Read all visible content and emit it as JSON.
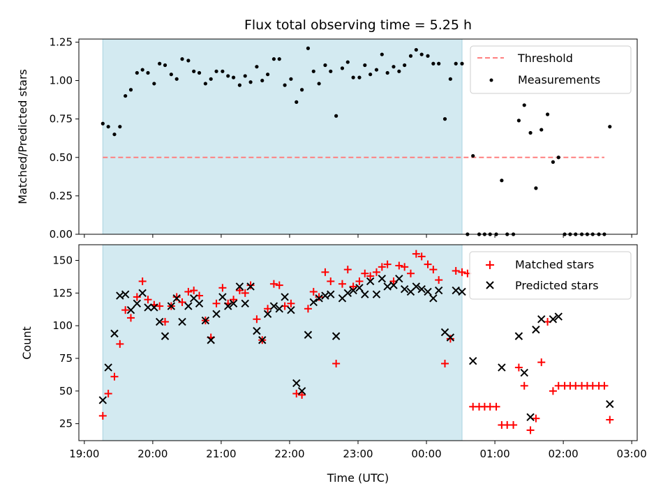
{
  "chart_data": {
    "title": "Flux total observing time = 5.25 h",
    "xlabel": "Time (UTC)",
    "x_ticks": [
      "19:00",
      "20:00",
      "21:00",
      "22:00",
      "23:00",
      "00:00",
      "01:00",
      "02:00",
      "03:00"
    ],
    "x_range_hours": [
      18.92,
      27.08
    ],
    "highlight_span_hours": [
      19.27,
      24.52
    ],
    "colors": {
      "span": "#d3eaf1",
      "threshold": "#ff7f7f",
      "matched": "#ff0000",
      "predicted": "#000000",
      "measurement": "#000000"
    },
    "panels": [
      {
        "type": "scatter",
        "ylabel": "Matched/Predicted stars",
        "ylim": [
          0,
          1.27
        ],
        "yticks": [
          "0.00",
          "0.25",
          "0.50",
          "0.75",
          "1.00",
          "1.25"
        ],
        "threshold": {
          "name": "Threshold",
          "value": 0.5,
          "x_range_hours": [
            19.27,
            26.6
          ]
        },
        "legend": [
          "Threshold",
          "Measurements"
        ],
        "series": [
          {
            "name": "Measurements",
            "x": [
              19.27,
              19.35,
              19.44,
              19.52,
              19.6,
              19.68,
              19.77,
              19.85,
              19.93,
              20.02,
              20.1,
              20.18,
              20.27,
              20.35,
              20.43,
              20.52,
              20.6,
              20.68,
              20.77,
              20.85,
              20.93,
              21.02,
              21.1,
              21.18,
              21.27,
              21.35,
              21.43,
              21.52,
              21.6,
              21.68,
              21.77,
              21.85,
              21.93,
              22.02,
              22.1,
              22.18,
              22.27,
              22.35,
              22.43,
              22.52,
              22.6,
              22.68,
              22.77,
              22.85,
              22.93,
              23.02,
              23.1,
              23.18,
              23.27,
              23.35,
              23.43,
              23.52,
              23.6,
              23.68,
              23.77,
              23.85,
              23.93,
              24.02,
              24.1,
              24.18,
              24.27,
              24.35,
              24.43,
              24.52,
              24.6,
              24.68,
              24.77,
              24.85,
              24.93,
              25.02,
              25.1,
              25.18,
              25.27,
              25.35,
              25.43,
              25.52,
              25.6,
              25.68,
              25.77,
              25.85,
              25.93,
              26.02,
              26.1,
              26.18,
              26.27,
              26.35,
              26.43,
              26.52,
              26.6,
              26.68
            ],
            "y": [
              0.72,
              0.7,
              0.65,
              0.7,
              0.9,
              0.94,
              1.05,
              1.07,
              1.05,
              0.98,
              1.11,
              1.1,
              1.04,
              1.01,
              1.14,
              1.13,
              1.06,
              1.05,
              0.98,
              1.01,
              1.06,
              1.06,
              1.03,
              1.02,
              0.97,
              1.03,
              0.99,
              1.09,
              1.0,
              1.04,
              1.14,
              1.14,
              0.97,
              1.01,
              0.86,
              0.94,
              1.21,
              1.06,
              0.98,
              1.1,
              1.06,
              0.77,
              1.08,
              1.12,
              1.02,
              1.02,
              1.1,
              1.04,
              1.07,
              1.17,
              1.05,
              1.09,
              1.06,
              1.1,
              1.16,
              1.2,
              1.17,
              1.16,
              1.11,
              1.11,
              0.75,
              1.01,
              1.11,
              1.11,
              0.0,
              0.51,
              0.0,
              0.0,
              0.0,
              0.0,
              0.35,
              0.0,
              0.0,
              0.74,
              0.84,
              0.66,
              0.3,
              0.68,
              0.78,
              0.47,
              0.5,
              0.0,
              0.0,
              0.0,
              0.0,
              0.0,
              0.0,
              0.0,
              0.0,
              0.7
            ]
          }
        ]
      },
      {
        "type": "scatter",
        "ylabel": "Count",
        "ylim": [
          12,
          162
        ],
        "yticks": [
          "25",
          "50",
          "75",
          "100",
          "125",
          "150"
        ],
        "legend": [
          "Matched stars",
          "Predicted stars"
        ],
        "series": [
          {
            "name": "Matched stars",
            "marker": "plus",
            "x": [
              19.27,
              19.35,
              19.44,
              19.52,
              19.6,
              19.68,
              19.77,
              19.85,
              19.93,
              20.02,
              20.1,
              20.18,
              20.27,
              20.35,
              20.43,
              20.52,
              20.6,
              20.68,
              20.77,
              20.85,
              20.93,
              21.02,
              21.1,
              21.18,
              21.27,
              21.35,
              21.43,
              21.52,
              21.6,
              21.68,
              21.77,
              21.85,
              21.93,
              22.02,
              22.1,
              22.18,
              22.27,
              22.35,
              22.43,
              22.52,
              22.6,
              22.68,
              22.77,
              22.85,
              22.93,
              23.02,
              23.1,
              23.18,
              23.27,
              23.35,
              23.43,
              23.52,
              23.6,
              23.68,
              23.77,
              23.85,
              23.93,
              24.02,
              24.1,
              24.18,
              24.27,
              24.35,
              24.43,
              24.52,
              24.6,
              24.68,
              24.77,
              24.85,
              24.93,
              25.02,
              25.1,
              25.18,
              25.27,
              25.35,
              25.43,
              25.52,
              25.6,
              25.68,
              25.77,
              25.85,
              25.93,
              26.02,
              26.1,
              26.18,
              26.27,
              26.35,
              26.43,
              26.52,
              26.6,
              26.68
            ],
            "y": [
              31,
              48,
              61,
              86,
              112,
              106,
              122,
              134,
              120,
              116,
              115,
              103,
              115,
              122,
              118,
              126,
              127,
              123,
              104,
              91,
              117,
              129,
              117,
              120,
              127,
              125,
              131,
              105,
              89,
              113,
              132,
              131,
              115,
              117,
              48,
              47,
              113,
              126,
              122,
              141,
              134,
              71,
              132,
              143,
              130,
              134,
              140,
              138,
              141,
              145,
              147,
              134,
              146,
              145,
              140,
              155,
              153,
              147,
              143,
              135,
              71,
              90,
              142,
              141,
              140,
              38,
              38,
              38,
              38,
              38,
              24,
              24,
              24,
              68,
              54,
              20,
              29,
              72,
              103,
              50,
              54,
              54,
              54,
              54,
              54,
              54,
              54,
              54,
              54,
              28
            ]
          },
          {
            "name": "Predicted stars",
            "marker": "x",
            "x": [
              19.27,
              19.35,
              19.44,
              19.52,
              19.6,
              19.68,
              19.77,
              19.85,
              19.93,
              20.02,
              20.1,
              20.18,
              20.27,
              20.35,
              20.43,
              20.52,
              20.6,
              20.68,
              20.77,
              20.85,
              20.93,
              21.02,
              21.1,
              21.18,
              21.27,
              21.35,
              21.43,
              21.52,
              21.6,
              21.68,
              21.77,
              21.85,
              21.93,
              22.02,
              22.1,
              22.18,
              22.27,
              22.35,
              22.43,
              22.52,
              22.6,
              22.68,
              22.77,
              22.85,
              22.93,
              23.02,
              23.1,
              23.18,
              23.27,
              23.35,
              23.43,
              23.52,
              23.6,
              23.68,
              23.77,
              23.85,
              23.93,
              24.02,
              24.1,
              24.18,
              24.27,
              24.35,
              24.43,
              24.52,
              24.68,
              25.1,
              25.35,
              25.43,
              25.52,
              25.6,
              25.68,
              25.85,
              25.93,
              26.68
            ],
            "y": [
              43,
              68,
              94,
              123,
              124,
              112,
              117,
              125,
              114,
              114,
              103,
              92,
              115,
              121,
              103,
              115,
              121,
              117,
              104,
              89,
              109,
              122,
              115,
              117,
              130,
              117,
              130,
              96,
              89,
              109,
              115,
              113,
              122,
              112,
              56,
              50,
              93,
              118,
              121,
              123,
              124,
              92,
              121,
              125,
              127,
              129,
              124,
              134,
              124,
              136,
              130,
              131,
              136,
              128,
              126,
              130,
              128,
              126,
              121,
              127,
              95,
              91,
              127,
              126,
              73,
              68,
              92,
              64,
              30,
              97,
              105,
              105,
              107,
              40
            ]
          }
        ]
      }
    ]
  }
}
